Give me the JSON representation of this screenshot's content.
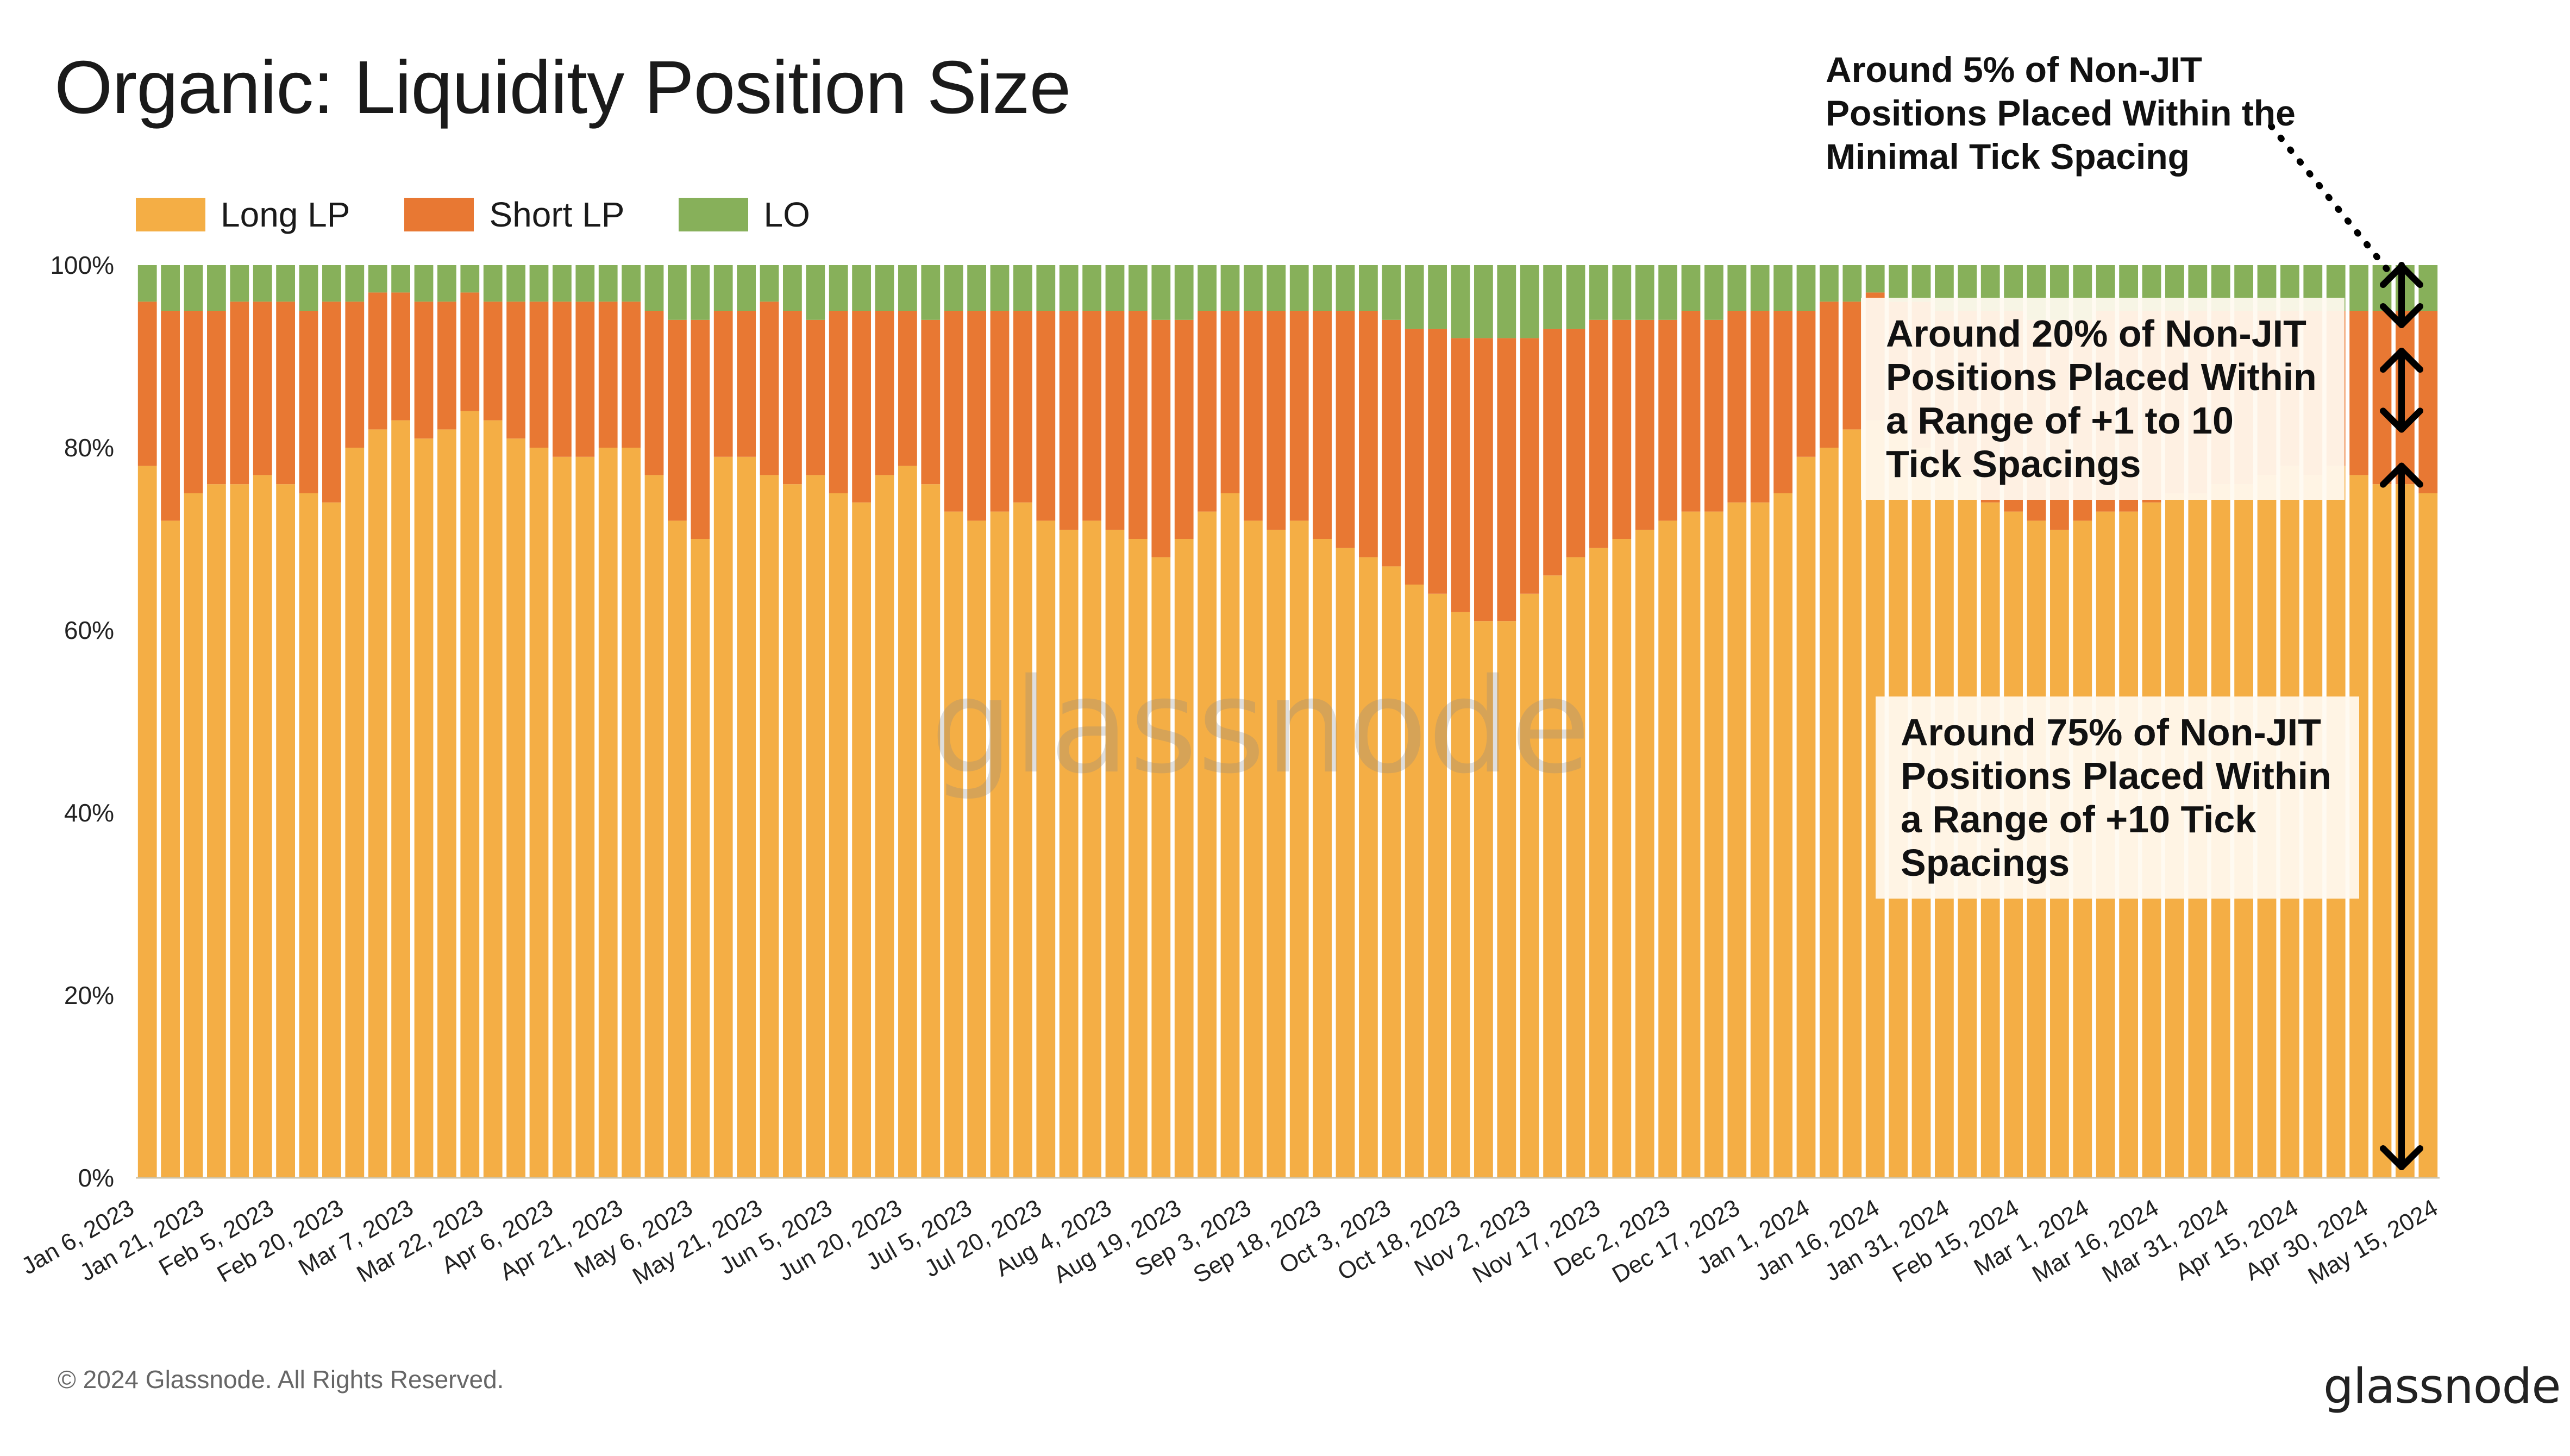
{
  "title": "Organic: Liquidity Position Size",
  "legend": [
    {
      "label": "Long LP",
      "color": "#f4ae45"
    },
    {
      "label": "Short LP",
      "color": "#e87833"
    },
    {
      "label": "LO",
      "color": "#87b05a"
    }
  ],
  "annotations": {
    "top_note": "Around 5% of Non-JIT Positions Placed Within the Minimal Tick Spacing",
    "mid_note": "Around 20% of Non-JIT Positions Placed Within a Range of +1 to 10 Tick Spacings",
    "low_note": "Around 75% of Non-JIT Positions Placed Within a Range of +10 Tick Spacings"
  },
  "watermark": "glassnode",
  "footer": {
    "copyright": "© 2024 Glassnode. All Rights Reserved.",
    "logo": "glassnode"
  },
  "chart_data": {
    "type": "bar",
    "stacked": true,
    "title": "Organic: Liquidity Position Size",
    "xlabel": "",
    "ylabel": "",
    "ylim": [
      0,
      100
    ],
    "y_ticks": [
      "0%",
      "20%",
      "40%",
      "60%",
      "80%",
      "100%"
    ],
    "x_tick_labels": [
      "Jan 6, 2023",
      "Jan 21, 2023",
      "Feb 5, 2023",
      "Feb 20, 2023",
      "Mar 7, 2023",
      "Mar 22, 2023",
      "Apr 6, 2023",
      "Apr 21, 2023",
      "May 6, 2023",
      "May 21, 2023",
      "Jun 5, 2023",
      "Jun 20, 2023",
      "Jul 5, 2023",
      "Jul 20, 2023",
      "Aug 4, 2023",
      "Aug 19, 2023",
      "Sep 3, 2023",
      "Sep 18, 2023",
      "Oct 3, 2023",
      "Oct 18, 2023",
      "Nov 2, 2023",
      "Nov 17, 2023",
      "Dec 2, 2023",
      "Dec 17, 2023",
      "Jan 1, 2024",
      "Jan 16, 2024",
      "Jan 31, 2024",
      "Feb 15, 2024",
      "Mar 1, 2024",
      "Mar 16, 2024",
      "Mar 31, 2024",
      "Apr 15, 2024",
      "Apr 30, 2024",
      "May 15, 2024"
    ],
    "grid": false,
    "legend_position": "top-left",
    "series": [
      {
        "name": "Long LP",
        "color": "#f4ae45",
        "values": [
          78,
          72,
          75,
          76,
          76,
          77,
          76,
          75,
          74,
          80,
          82,
          83,
          81,
          82,
          84,
          83,
          81,
          80,
          79,
          79,
          80,
          80,
          77,
          72,
          70,
          79,
          79,
          77,
          76,
          77,
          75,
          74,
          77,
          78,
          76,
          73,
          72,
          73,
          74,
          72,
          71,
          72,
          71,
          70,
          68,
          70,
          73,
          75,
          72,
          71,
          72,
          70,
          69,
          68,
          67,
          65,
          64,
          62,
          61,
          61,
          64,
          66,
          68,
          69,
          70,
          71,
          72,
          73,
          73,
          74,
          74,
          75,
          79,
          80,
          82,
          83,
          82,
          80,
          78,
          77,
          74,
          73,
          72,
          71,
          72,
          73,
          73,
          74,
          75,
          75,
          76,
          76,
          77,
          78,
          77,
          78,
          77,
          76,
          76,
          75
        ],
        "shown": [
          {
            "x": "Jan 6, 2023",
            "y": 78
          },
          {
            "x": "Feb 20, 2023",
            "y": 81
          },
          {
            "x": "Apr 6, 2023",
            "y": 72
          },
          {
            "x": "May 21, 2023",
            "y": 74
          },
          {
            "x": "Jul 5, 2023",
            "y": 72
          },
          {
            "x": "Aug 19, 2023",
            "y": 66
          },
          {
            "x": "Oct 3, 2023",
            "y": 68
          },
          {
            "x": "Nov 17, 2023",
            "y": 74
          },
          {
            "x": "Jan 1, 2024",
            "y": 80
          },
          {
            "x": "Feb 15, 2024",
            "y": 78
          },
          {
            "x": "Mar 31, 2024",
            "y": 77
          },
          {
            "x": "May 15, 2024",
            "y": 75
          }
        ]
      },
      {
        "name": "Short LP",
        "color": "#e87833",
        "values": [
          18,
          23,
          20,
          19,
          20,
          19,
          20,
          20,
          22,
          16,
          15,
          14,
          15,
          14,
          13,
          13,
          15,
          16,
          17,
          17,
          16,
          16,
          18,
          22,
          24,
          16,
          16,
          19,
          19,
          17,
          20,
          21,
          18,
          17,
          18,
          22,
          23,
          22,
          21,
          23,
          24,
          23,
          24,
          25,
          26,
          24,
          22,
          20,
          23,
          24,
          23,
          25,
          26,
          27,
          27,
          28,
          29,
          30,
          31,
          31,
          28,
          27,
          25,
          25,
          24,
          23,
          22,
          22,
          21,
          21,
          21,
          20,
          16,
          16,
          14,
          14,
          14,
          16,
          17,
          18,
          21,
          22,
          22,
          23,
          22,
          22,
          22,
          21,
          20,
          20,
          19,
          19,
          18,
          17,
          18,
          17,
          18,
          19,
          19,
          20
        ]
      },
      {
        "name": "LO",
        "color": "#87b05a",
        "values": [
          4,
          5,
          5,
          5,
          4,
          4,
          4,
          5,
          4,
          4,
          3,
          3,
          4,
          4,
          3,
          4,
          4,
          4,
          4,
          4,
          4,
          4,
          5,
          6,
          6,
          5,
          5,
          4,
          5,
          6,
          5,
          5,
          5,
          5,
          6,
          5,
          5,
          5,
          5,
          5,
          5,
          5,
          5,
          5,
          6,
          6,
          5,
          5,
          5,
          5,
          5,
          5,
          5,
          5,
          6,
          7,
          7,
          8,
          8,
          8,
          8,
          7,
          7,
          6,
          6,
          6,
          6,
          5,
          6,
          5,
          5,
          5,
          5,
          4,
          4,
          3,
          4,
          4,
          5,
          5,
          5,
          5,
          6,
          6,
          6,
          5,
          5,
          5,
          5,
          5,
          5,
          5,
          5,
          5,
          5,
          5,
          5,
          5,
          5,
          5
        ]
      }
    ]
  }
}
